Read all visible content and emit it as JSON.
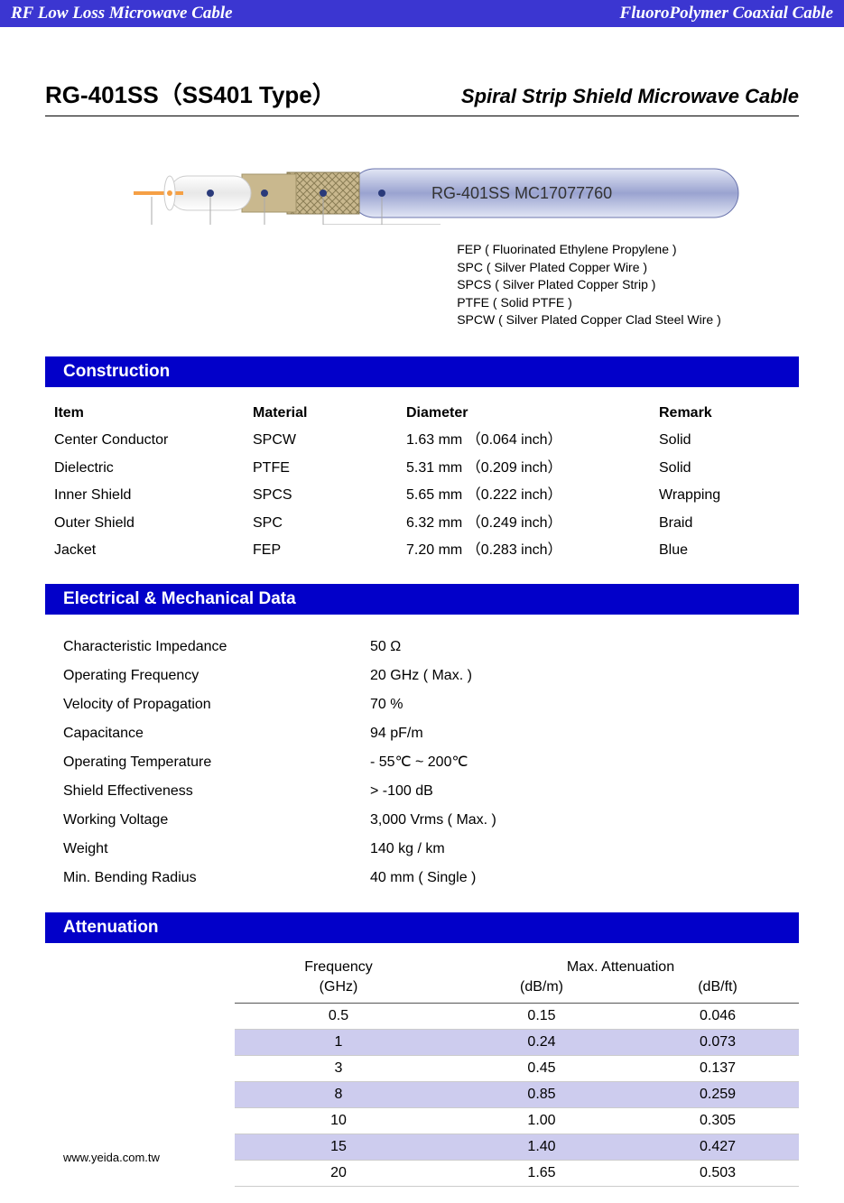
{
  "banner": {
    "left": "RF Low Loss Microwave Cable",
    "right": "FluoroPolymer Coaxial Cable"
  },
  "title": {
    "model": "RG-401SS（SS401 Type）",
    "subtitle": "Spiral Strip Shield Microwave Cable"
  },
  "diagram": {
    "cable_label": "RG-401SS MC17077760",
    "callouts": [
      "FEP ( Fluorinated Ethylene Propylene )",
      "SPC ( Silver Plated Copper Wire )",
      "SPCS ( Silver Plated Copper Strip )",
      "PTFE ( Solid PTFE )",
      "SPCW ( Silver Plated Copper Clad Steel Wire )"
    ],
    "colors": {
      "core": "#f5a045",
      "ptfe": "#ffffff",
      "spcs": "#c9b88e",
      "spc": "#b5af8f",
      "jacket_light": "#d3d8ef",
      "jacket_dark": "#9aa3d0",
      "dot": "#2a3a7a"
    }
  },
  "construction": {
    "header": "Construction",
    "cols": [
      "Item",
      "Material",
      "Diameter",
      "Remark"
    ],
    "rows": [
      [
        "Center Conductor",
        "SPCW",
        "1.63 mm （0.064 inch）",
        "Solid"
      ],
      [
        "Dielectric",
        "PTFE",
        "5.31 mm （0.209 inch）",
        "Solid"
      ],
      [
        "Inner Shield",
        "SPCS",
        "5.65 mm （0.222 inch）",
        "Wrapping"
      ],
      [
        "Outer Shield",
        "SPC",
        "6.32 mm （0.249 inch）",
        "Braid"
      ],
      [
        "Jacket",
        "FEP",
        "7.20 mm （0.283 inch）",
        "Blue"
      ]
    ]
  },
  "electrical": {
    "header": "Electrical & Mechanical Data",
    "rows": [
      [
        "Characteristic Impedance",
        "50 Ω"
      ],
      [
        "Operating Frequency",
        "20 GHz ( Max. )"
      ],
      [
        "Velocity of Propagation",
        "70  %"
      ],
      [
        "Capacitance",
        "94 pF/m"
      ],
      [
        "Operating Temperature",
        "- 55℃ ~  200℃"
      ],
      [
        "Shield Effectiveness",
        "> -100 dB"
      ],
      [
        "Working Voltage",
        "3,000 Vrms ( Max. )"
      ],
      [
        "Weight",
        "140 kg / km"
      ],
      [
        "Min. Bending Radius",
        "40 mm ( Single )"
      ]
    ]
  },
  "attenuation": {
    "header": "Attenuation",
    "head_freq": "Frequency",
    "head_att": "Max. Attenuation",
    "unit_freq": "(GHz)",
    "unit_a1": "(dB/m)",
    "unit_a2": "(dB/ft)",
    "rows": [
      [
        "0.5",
        "0.15",
        "0.046"
      ],
      [
        "1",
        "0.24",
        "0.073"
      ],
      [
        "3",
        "0.45",
        "0.137"
      ],
      [
        "8",
        "0.85",
        "0.259"
      ],
      [
        "10",
        "1.00",
        "0.305"
      ],
      [
        "15",
        "1.40",
        "0.427"
      ],
      [
        "20",
        "1.65",
        "0.503"
      ]
    ]
  },
  "footer": {
    "url": "www.yeida.com.tw"
  },
  "style": {
    "banner_bg": "#3b36d1",
    "section_bg": "#0200c9",
    "alt_row_bg": "#cdccee"
  }
}
